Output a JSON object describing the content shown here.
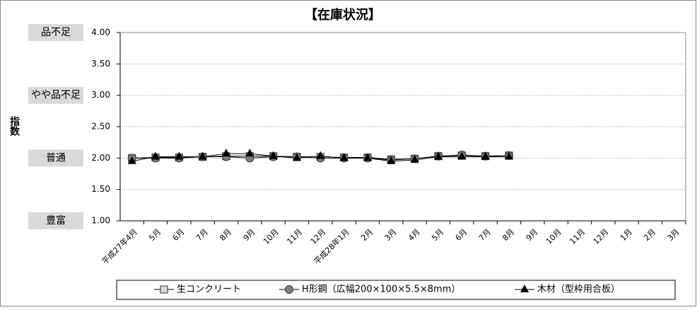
{
  "chart_data": {
    "type": "line",
    "title": "【在庫状況】",
    "y_label": "指数",
    "categories": [
      "平成27年4月",
      "5月",
      "6月",
      "7月",
      "8月",
      "9月",
      "10月",
      "11月",
      "12月",
      "平成28年1月",
      "2月",
      "3月",
      "4月",
      "5月",
      "6月",
      "7月",
      "8月",
      "9月",
      "10月",
      "11月",
      "12月",
      "1月",
      "2月",
      "3月"
    ],
    "series": [
      {
        "name": "生コンクリート",
        "color": "#000000",
        "marker": "square",
        "marker_color": "#d9d9d9",
        "values": [
          2.0,
          2.01,
          2.01,
          2.02,
          2.03,
          2.03,
          2.03,
          2.02,
          2.02,
          2.01,
          2.01,
          1.98,
          1.99,
          2.03,
          2.04,
          2.03,
          2.04,
          null,
          null,
          null,
          null,
          null,
          null,
          null
        ]
      },
      {
        "name": "H形鋼（広幅200×100×5.5×8mm）",
        "color": "#000000",
        "marker": "circle",
        "marker_color": "#808080",
        "values": [
          2.0,
          2.0,
          2.0,
          2.02,
          2.02,
          2.0,
          2.02,
          2.02,
          2.0,
          2.0,
          2.0,
          1.97,
          1.99,
          2.03,
          2.05,
          2.03,
          2.04,
          null,
          null,
          null,
          null,
          null,
          null,
          null
        ]
      },
      {
        "name": "木材（型枠用合板）",
        "color": "#000000",
        "marker": "triangle",
        "marker_color": "#000000",
        "values": [
          1.95,
          2.02,
          2.02,
          2.02,
          2.07,
          2.07,
          2.03,
          2.0,
          2.03,
          2.0,
          2.0,
          1.95,
          1.97,
          2.02,
          2.02,
          2.02,
          2.02,
          null,
          null,
          null,
          null,
          null,
          null,
          null
        ]
      }
    ],
    "ylim": [
      1,
      4
    ],
    "yticks": [
      {
        "value": 1,
        "label": "1.00"
      },
      {
        "value": 1.5,
        "label": "1.50"
      },
      {
        "value": 2,
        "label": "2.00"
      },
      {
        "value": 2.5,
        "label": "2.50"
      },
      {
        "value": 3,
        "label": "3.00"
      },
      {
        "value": 3.5,
        "label": "3.50"
      },
      {
        "value": 4,
        "label": "4.00"
      }
    ],
    "side_labels": [
      {
        "value": 4,
        "label": "品不足"
      },
      {
        "value": 3,
        "label": "やや品不足"
      },
      {
        "value": 2,
        "label": "普通"
      },
      {
        "value": 1,
        "label": "豊富"
      }
    ],
    "grid": true,
    "legend": "bottom"
  }
}
